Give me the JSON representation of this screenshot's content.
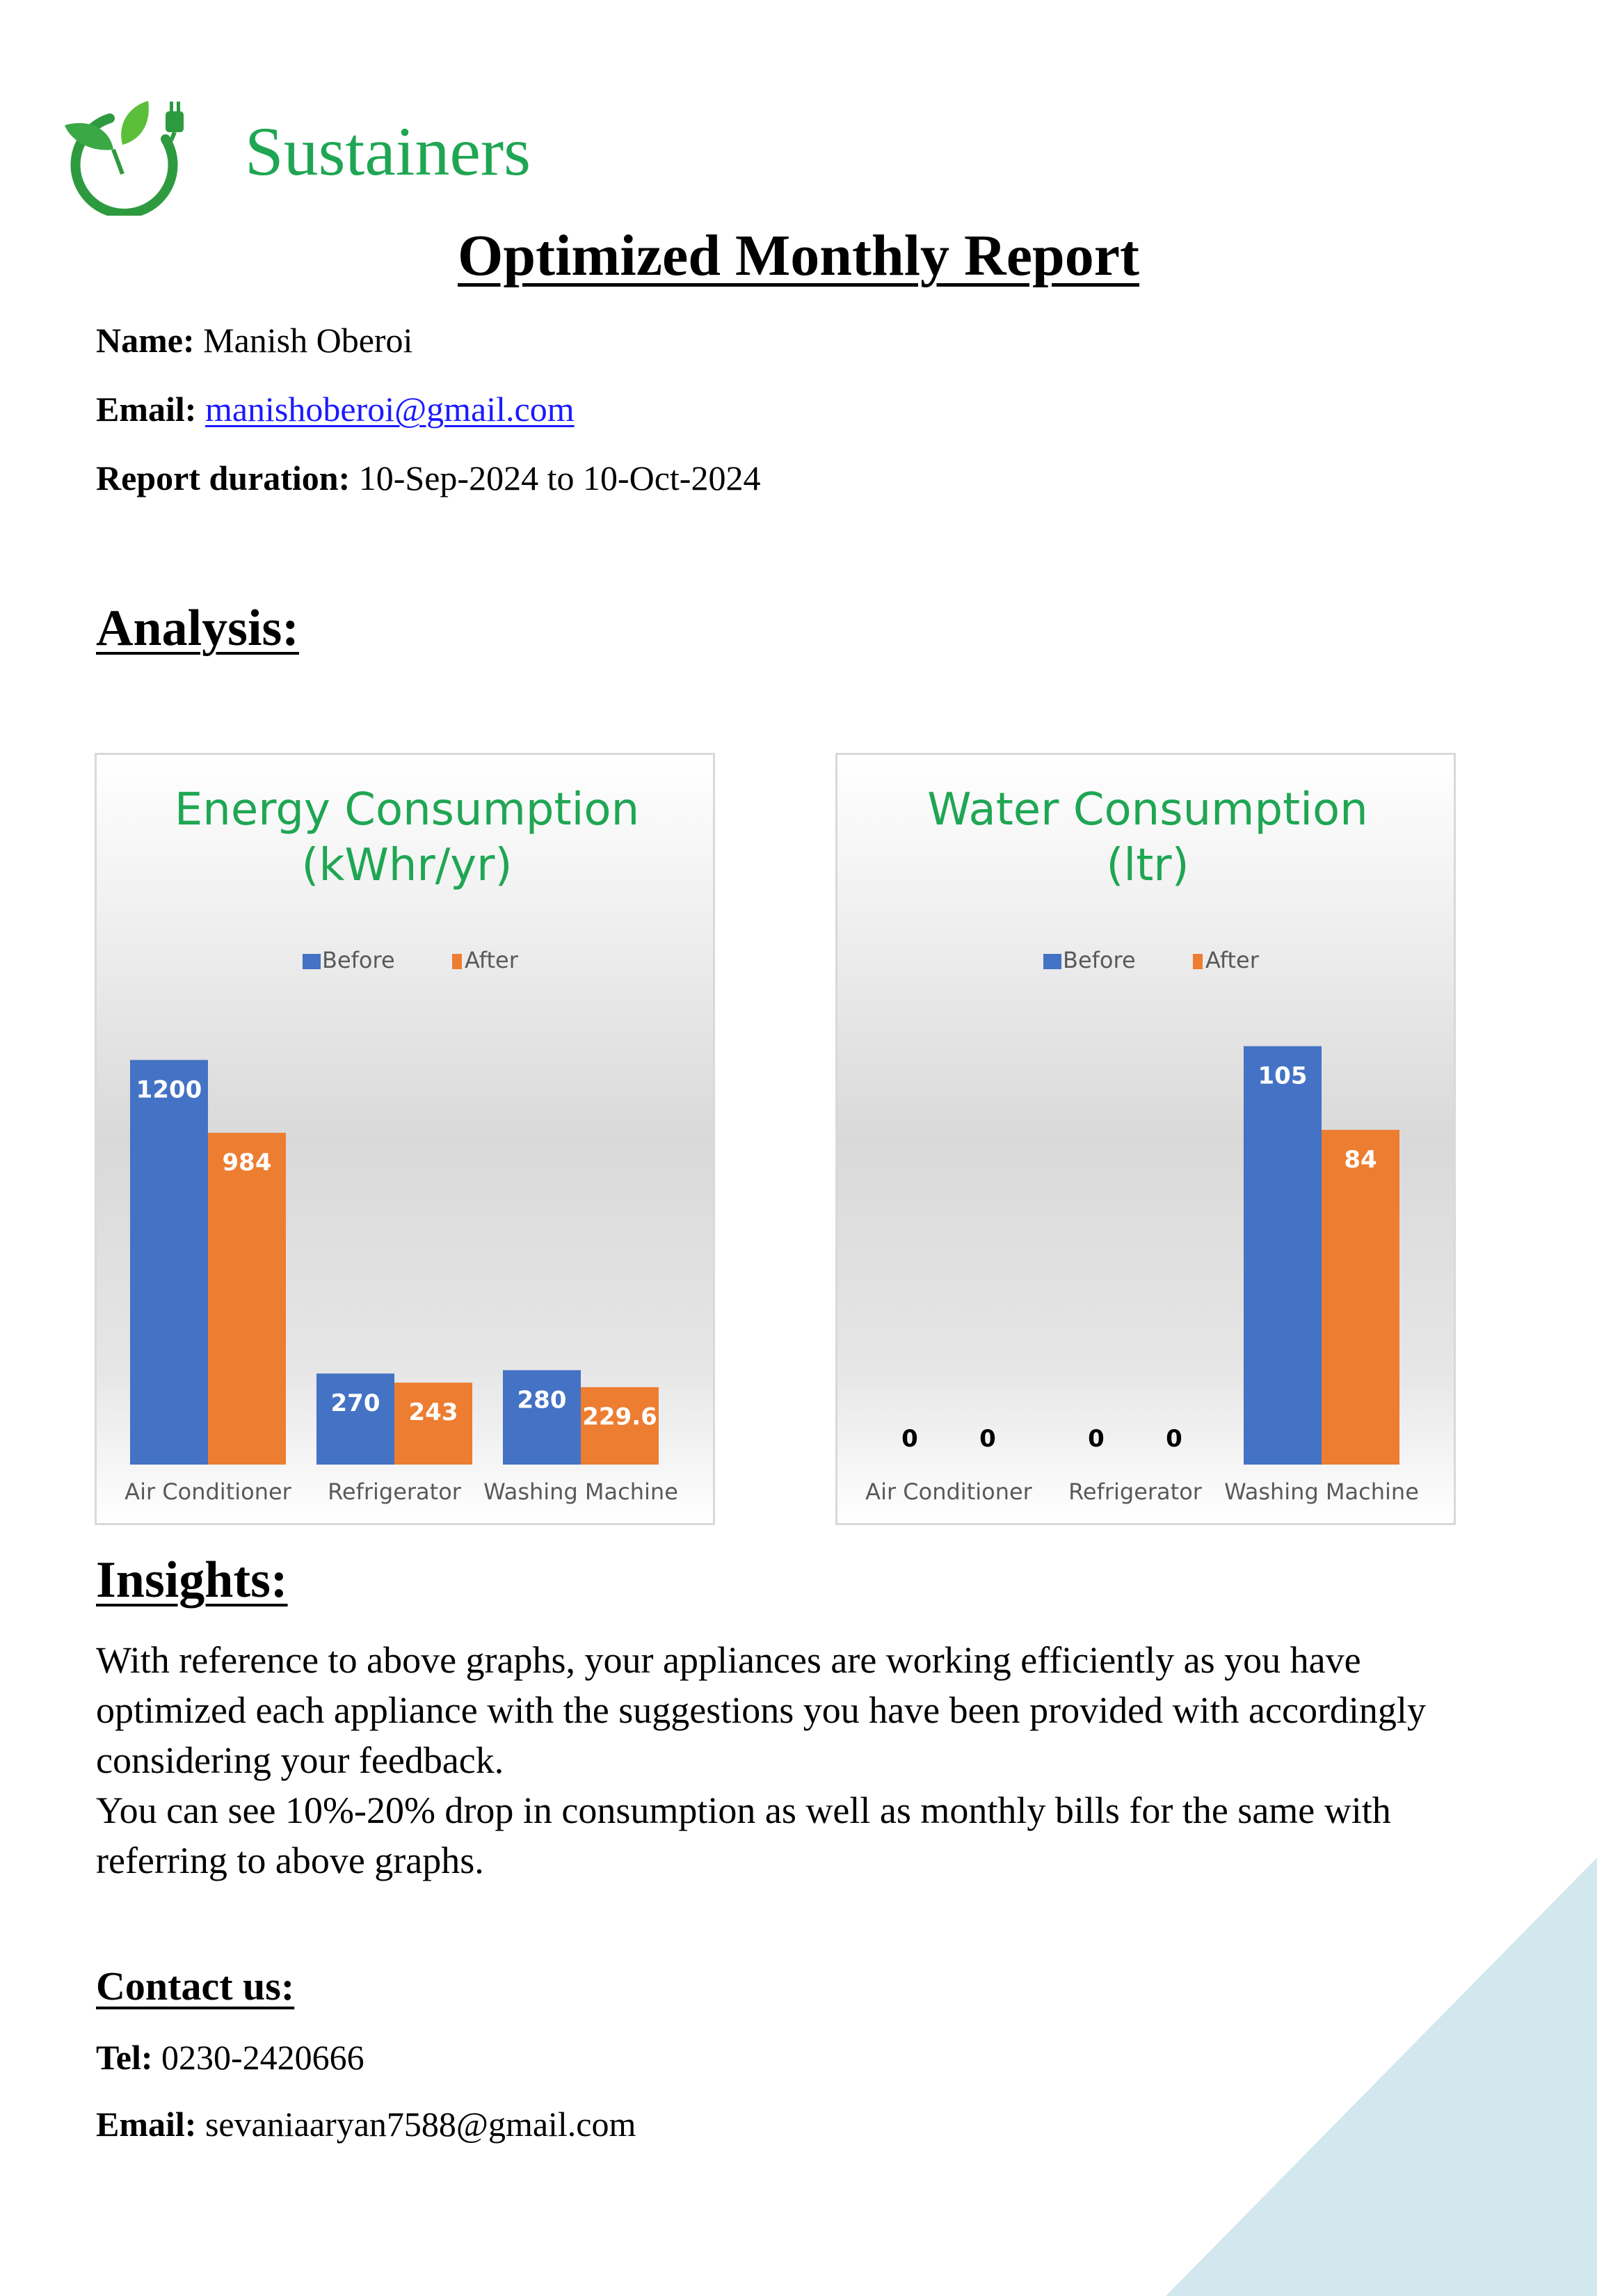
{
  "brand": {
    "name": "Sustainers",
    "logo_icon": "leaf-plug-icon"
  },
  "report": {
    "title": "Optimized Monthly Report",
    "name_label": "Name:",
    "name_value": "Manish Oberoi",
    "email_label": "Email:",
    "email_value": "manishoberoi@gmail.com",
    "duration_label": "Report duration:",
    "duration_value": "10-Sep-2024 to 10-Oct-2024"
  },
  "analysis": {
    "heading": "Analysis:"
  },
  "chart_data": [
    {
      "type": "bar",
      "title_lines": [
        "Energy Consumption",
        "(kWhr/yr)"
      ],
      "categories": [
        "Air Conditioner",
        "Refrigerator",
        "Washing Machine"
      ],
      "series": [
        {
          "name": "Before",
          "values": [
            1200,
            270,
            280
          ],
          "labels": [
            "1200",
            "270",
            "280"
          ],
          "color": "#4472c4"
        },
        {
          "name": "After",
          "values": [
            984,
            243,
            229.6
          ],
          "labels": [
            "984",
            "243",
            "229.6"
          ],
          "color": "#ed7d31"
        }
      ],
      "ylim": [
        0,
        1300
      ],
      "legend": "top",
      "grid": false
    },
    {
      "type": "bar",
      "title_lines": [
        "Water Consumption",
        "(ltr)"
      ],
      "categories": [
        "Air Conditioner",
        "Refrigerator",
        "Washing Machine"
      ],
      "series": [
        {
          "name": "Before",
          "values": [
            0,
            0,
            105
          ],
          "labels": [
            "0",
            "0",
            "105"
          ],
          "color": "#4472c4"
        },
        {
          "name": "After",
          "values": [
            0,
            0,
            84
          ],
          "labels": [
            "0",
            "0",
            "84"
          ],
          "color": "#ed7d31"
        }
      ],
      "ylim": [
        0,
        110
      ],
      "legend": "top",
      "grid": false
    }
  ],
  "insights": {
    "heading": "Insights:",
    "paragraphs": [
      "With reference to above graphs, your appliances are working efficiently as you have optimized each appliance with the suggestions you have been provided with accordingly considering your feedback.",
      "You can see 10%-20% drop in consumption as well as monthly bills for the same with referring to above graphs."
    ]
  },
  "contact": {
    "heading": "Contact us:",
    "tel_label": "Tel:",
    "tel_value": "0230-2420666",
    "email_label": "Email:",
    "email_value": "sevaniaaryan7588@gmail.com"
  },
  "colors": {
    "brand_green": "#1fa653",
    "chart_title_green": "#1fa653",
    "corner_blue": "#d2e7ee"
  }
}
